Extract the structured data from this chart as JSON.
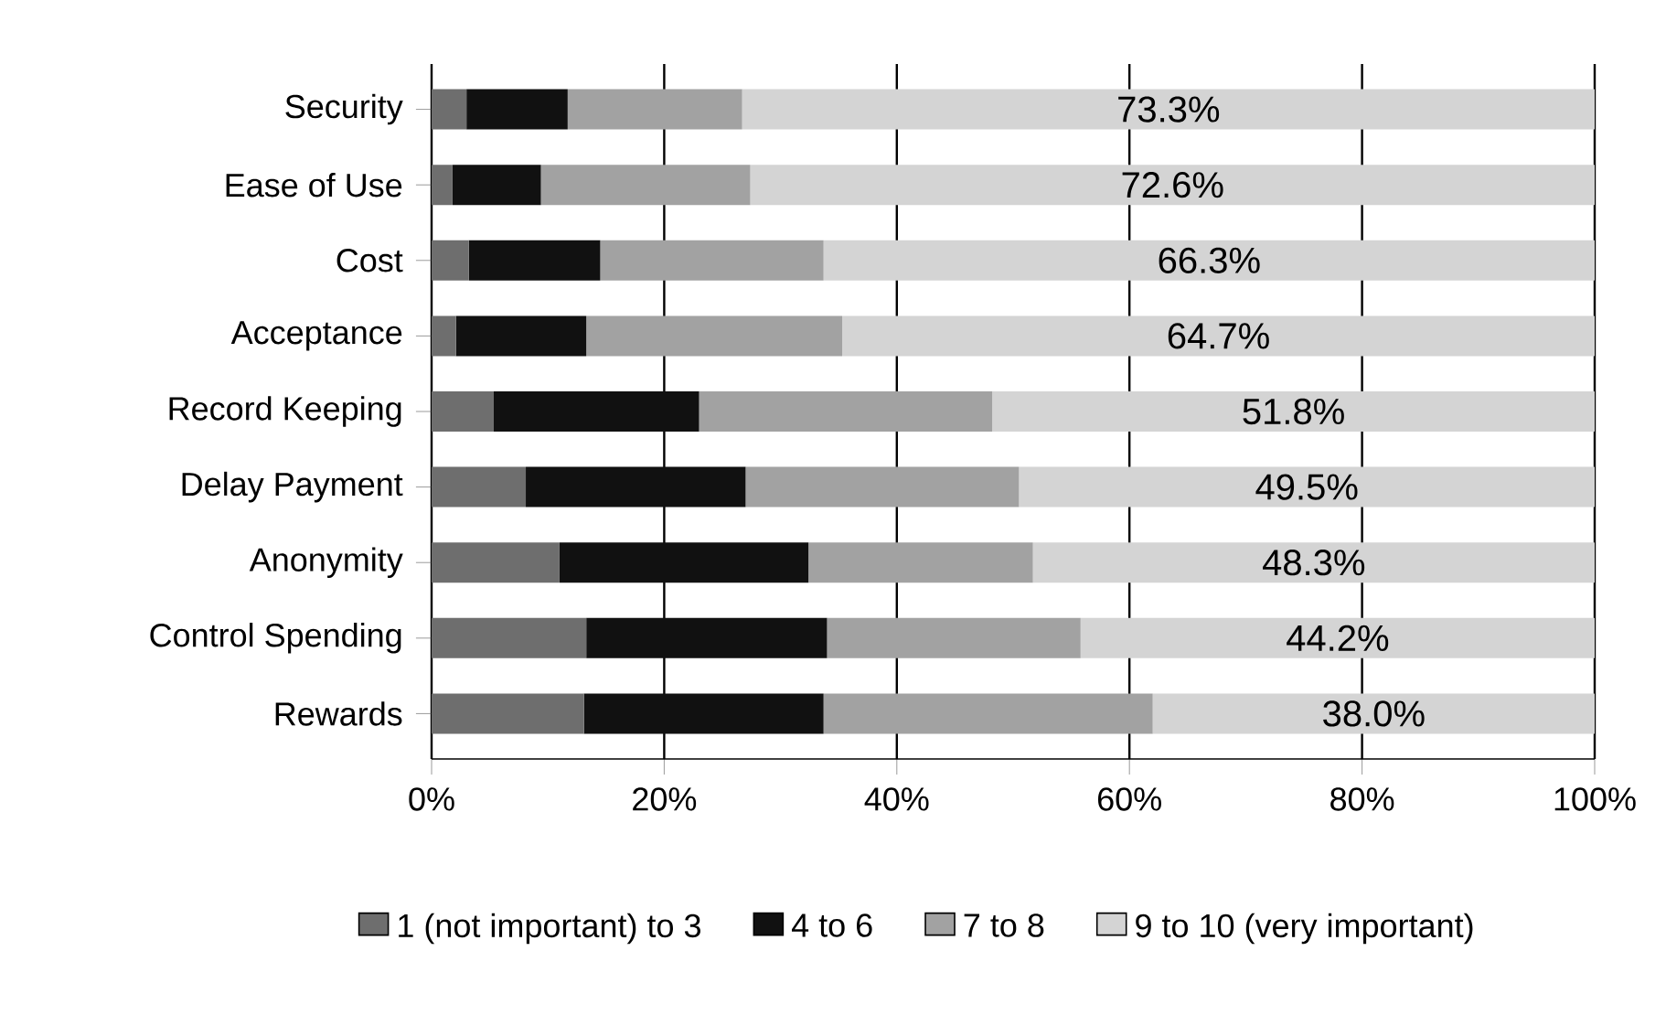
{
  "chart_data": {
    "type": "bar",
    "orientation": "horizontal",
    "stacked": true,
    "categories": [
      "Security",
      "Ease of Use",
      "Cost",
      "Acceptance",
      "Record Keeping",
      "Delay Payment",
      "Anonymity",
      "Control Spending",
      "Rewards"
    ],
    "series": [
      {
        "name": "1 (not important) to 3",
        "color": "#6e6e6e",
        "values": [
          3.0,
          1.8,
          3.2,
          2.1,
          5.3,
          8.1,
          11.0,
          13.3,
          13.1
        ]
      },
      {
        "name": "4 to 6",
        "color": "#111111",
        "values": [
          8.7,
          7.6,
          11.3,
          11.2,
          17.7,
          18.9,
          21.4,
          20.7,
          20.6
        ]
      },
      {
        "name": "7 to 8",
        "color": "#a2a2a2",
        "values": [
          15.0,
          18.0,
          19.2,
          22.0,
          25.2,
          23.5,
          19.3,
          21.8,
          28.3
        ]
      },
      {
        "name": "9 to 10 (very important)",
        "color": "#d4d4d4",
        "values": [
          73.3,
          72.6,
          66.3,
          64.7,
          51.8,
          49.5,
          48.3,
          44.2,
          38.0
        ],
        "value_labels": [
          "73.3%",
          "72.6%",
          "66.3%",
          "64.7%",
          "51.8%",
          "49.5%",
          "48.3%",
          "44.2%",
          "38.0%"
        ]
      }
    ],
    "xlim": [
      0,
      100
    ],
    "xticks": [
      {
        "value": 0,
        "label": "0%"
      },
      {
        "value": 20,
        "label": "20%"
      },
      {
        "value": 40,
        "label": "40%"
      },
      {
        "value": 60,
        "label": "60%"
      },
      {
        "value": 80,
        "label": "80%"
      },
      {
        "value": 100,
        "label": "100%"
      }
    ],
    "grid": "x",
    "legend": "bottom"
  }
}
